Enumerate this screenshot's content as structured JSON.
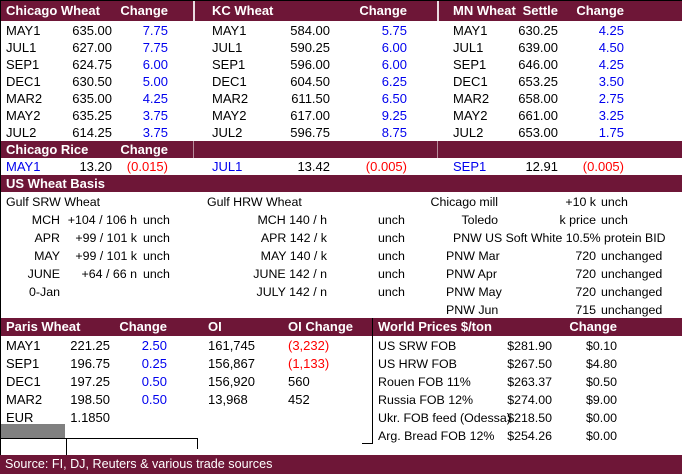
{
  "colors": {
    "maroon": "#6E1637",
    "blue": "#0000EE",
    "red": "#FF0000",
    "gray": "#808080"
  },
  "futures": {
    "sections": [
      {
        "title": "Chicago Wheat",
        "settle_label": "",
        "change_label": "Change",
        "rows": [
          [
            "MAY1",
            "635.00",
            "7.75"
          ],
          [
            "JUL1",
            "627.00",
            "7.75"
          ],
          [
            "SEP1",
            "624.75",
            "6.00"
          ],
          [
            "DEC1",
            "630.50",
            "5.00"
          ],
          [
            "MAR2",
            "635.00",
            "4.25"
          ],
          [
            "MAY2",
            "635.25",
            "3.75"
          ],
          [
            "JUL2",
            "614.25",
            "3.75"
          ]
        ]
      },
      {
        "title": "KC Wheat",
        "settle_label": "",
        "change_label": "Change",
        "rows": [
          [
            "MAY1",
            "584.00",
            "5.75"
          ],
          [
            "JUL1",
            "590.25",
            "6.00"
          ],
          [
            "SEP1",
            "596.00",
            "6.00"
          ],
          [
            "DEC1",
            "604.50",
            "6.25"
          ],
          [
            "MAR2",
            "611.50",
            "6.50"
          ],
          [
            "MAY2",
            "617.00",
            "9.25"
          ],
          [
            "JUL2",
            "596.75",
            "8.75"
          ]
        ]
      },
      {
        "title": "MN Wheat",
        "settle_label": "Settle",
        "change_label": "Change",
        "rows": [
          [
            "MAY1",
            "630.25",
            "4.25"
          ],
          [
            "JUL1",
            "639.00",
            "4.50"
          ],
          [
            "SEP1",
            "646.00",
            "4.25"
          ],
          [
            "DEC1",
            "653.25",
            "3.50"
          ],
          [
            "MAR2",
            "658.00",
            "2.75"
          ],
          [
            "MAY2",
            "661.00",
            "3.25"
          ],
          [
            "JUL2",
            "653.00",
            "1.75"
          ]
        ]
      }
    ]
  },
  "rice": {
    "title": "Chicago Rice",
    "change_label": "Change",
    "rows": [
      [
        "MAY1",
        "13.20",
        "(0.015)"
      ],
      [
        "JUL1",
        "13.42",
        "(0.005)"
      ],
      [
        "SEP1",
        "12.91",
        "(0.005)"
      ]
    ]
  },
  "basis": {
    "title": "US Wheat Basis",
    "srw": {
      "title": "Gulf SRW Wheat",
      "rows": [
        [
          "MCH",
          "+104 / 106 h",
          "unch"
        ],
        [
          "APR",
          "+99 / 101 k",
          "unch"
        ],
        [
          "MAY",
          "+99 / 101 k",
          "unch"
        ],
        [
          "JUNE",
          "+64 / 66 n",
          "unch"
        ],
        [
          "0-Jan",
          "",
          ""
        ]
      ]
    },
    "hrw": {
      "title": "Gulf HRW Wheat",
      "rows": [
        [
          "MCH 140 / h",
          "unch"
        ],
        [
          "APR 142 / k",
          "unch"
        ],
        [
          "MAY 140 / k",
          "unch"
        ],
        [
          "JUNE 142 / n",
          "unch"
        ],
        [
          "JULY 142 / n",
          "unch"
        ]
      ]
    },
    "pnw": {
      "rows": [
        [
          "Chicago mill",
          "+10 k",
          "unch"
        ],
        [
          "Toledo",
          "k price",
          "unch"
        ],
        [
          "PNW US Soft White 10.5% protein BID",
          "",
          ""
        ],
        [
          "PNW Mar",
          "720",
          "unchanged"
        ],
        [
          "PNW Apr",
          "720",
          "unchanged"
        ],
        [
          "PNW May",
          "720",
          "unchanged"
        ],
        [
          "PNW Jun",
          "715",
          "unchanged"
        ]
      ]
    }
  },
  "paris": {
    "title": "Paris Wheat",
    "change_label": "Change",
    "oi_label": "OI",
    "oi_change_label": "OI Change",
    "rows": [
      [
        "MAY1",
        "221.25",
        "2.50",
        "161,745",
        "(3,232)"
      ],
      [
        "SEP1",
        "196.75",
        "0.25",
        "156,867",
        "(1,133)"
      ],
      [
        "DEC1",
        "197.25",
        "0.50",
        "156,920",
        "560"
      ],
      [
        "MAR2",
        "198.50",
        "0.50",
        "13,968",
        "452"
      ],
      [
        "EUR",
        "1.1850",
        "",
        "",
        ""
      ]
    ]
  },
  "world": {
    "title": "World Prices $/ton",
    "change_label": "Change",
    "rows": [
      [
        "US SRW FOB",
        "$281.90",
        "$0.10"
      ],
      [
        "US HRW FOB",
        "$267.50",
        "$4.80"
      ],
      [
        "Rouen FOB 11%",
        "$263.37",
        "$0.50"
      ],
      [
        "Russia FOB 12%",
        "$274.00",
        "$9.00"
      ],
      [
        "Ukr. FOB feed (Odessa)",
        "$218.50",
        "$0.00"
      ],
      [
        "Arg. Bread FOB 12%",
        "$254.26",
        "$0.00"
      ]
    ]
  },
  "source": "Source: FI, DJ, Reuters & various trade sources"
}
